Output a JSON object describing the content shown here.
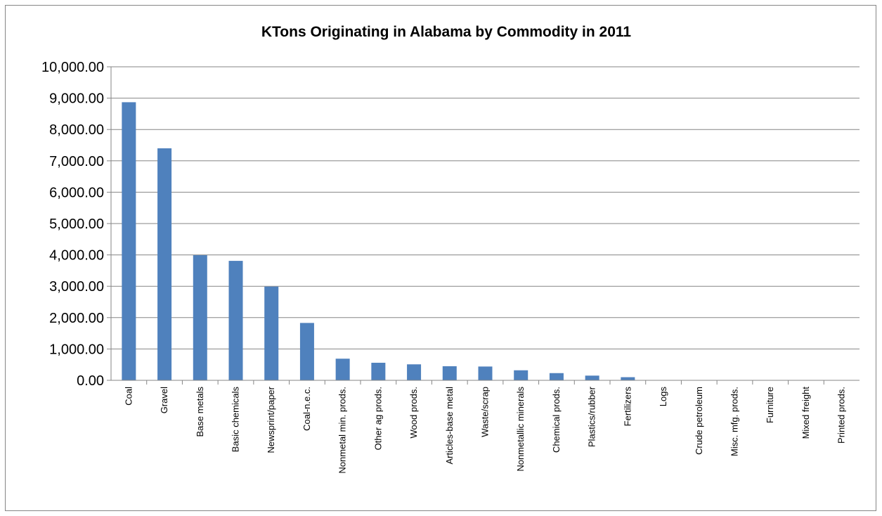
{
  "chart_data": {
    "type": "bar",
    "title": "KTons Originating in Alabama by Commodity in 2011",
    "xlabel": "",
    "ylabel": "",
    "ylim": [
      0,
      10000
    ],
    "ytick_step": 1000,
    "ytick_labels": [
      "0.00",
      "1,000.00",
      "2,000.00",
      "3,000.00",
      "4,000.00",
      "5,000.00",
      "6,000.00",
      "7,000.00",
      "8,000.00",
      "9,000.00",
      "10,000.00"
    ],
    "grid": true,
    "legend": "none",
    "bar_color": "#4F81BD",
    "categories": [
      "Coal",
      "Gravel",
      "Base metals",
      "Basic chemicals",
      "Newsprint/paper",
      "Coal-n.e.c.",
      "Nonmetal min. prods.",
      "Other ag prods.",
      "Wood prods.",
      "Articles-base metal",
      "Waste/scrap",
      "Nonmetallic minerals",
      "Chemical prods.",
      "Plastics/rubber",
      "Fertilizers",
      "Logs",
      "Crude petroleum",
      "Misc. mfg. prods.",
      "Furniture",
      "Mixed freight",
      "Printed prods."
    ],
    "values": [
      8870,
      7400,
      3990,
      3810,
      2990,
      1830,
      690,
      560,
      510,
      450,
      440,
      320,
      230,
      150,
      100,
      5,
      3,
      2,
      1,
      1,
      1
    ]
  }
}
